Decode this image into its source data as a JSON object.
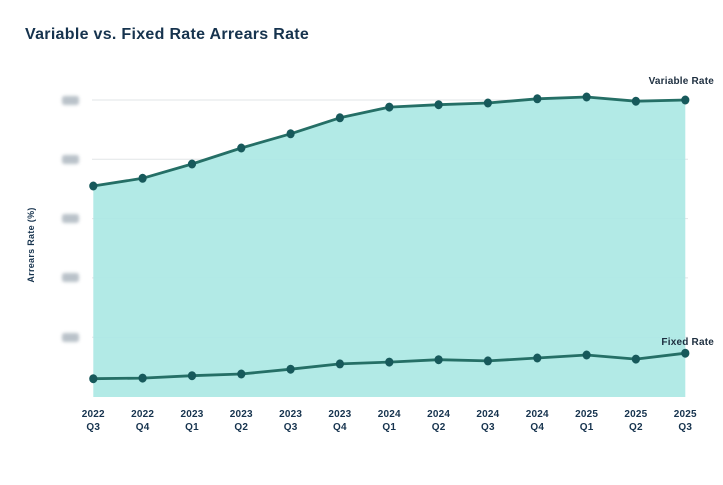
{
  "title": "Variable vs. Fixed Rate Arrears Rate",
  "chart_data": {
    "type": "area",
    "title": "Variable vs. Fixed Rate Arrears Rate",
    "xlabel": "",
    "ylabel": "Arrears Rate (%)",
    "categories": [
      {
        "year": "2022",
        "quarter": "Q3"
      },
      {
        "year": "2022",
        "quarter": "Q4"
      },
      {
        "year": "2023",
        "quarter": "Q1"
      },
      {
        "year": "2023",
        "quarter": "Q2"
      },
      {
        "year": "2023",
        "quarter": "Q3"
      },
      {
        "year": "2023",
        "quarter": "Q4"
      },
      {
        "year": "2024",
        "quarter": "Q1"
      },
      {
        "year": "2024",
        "quarter": "Q2"
      },
      {
        "year": "2024",
        "quarter": "Q3"
      },
      {
        "year": "2024",
        "quarter": "Q4"
      },
      {
        "year": "2025",
        "quarter": "Q1"
      },
      {
        "year": "2025",
        "quarter": "Q2"
      },
      {
        "year": "2025",
        "quarter": "Q3"
      }
    ],
    "series": [
      {
        "name": "Variable Rate",
        "values": [
          3.55,
          3.68,
          3.92,
          4.19,
          4.43,
          4.7,
          4.88,
          4.92,
          4.95,
          5.02,
          5.05,
          4.98,
          5.0
        ]
      },
      {
        "name": "Fixed Rate",
        "values": [
          0.3,
          0.31,
          0.35,
          0.38,
          0.46,
          0.55,
          0.58,
          0.62,
          0.6,
          0.65,
          0.7,
          0.63,
          0.73
        ]
      }
    ],
    "y_axis": {
      "tick_count": 5,
      "tick_values": [
        1,
        2,
        3,
        4,
        5
      ],
      "labels_visible": false,
      "note": "y-axis tick labels are blurred/redacted in the source image; series values are expressed in gridline units (0 = chart baseline, 1 unit per gridline step)"
    },
    "grid": "horizontal",
    "legend_position": "end-of-line labels (right side)"
  },
  "colors": {
    "line": "#256f66",
    "marker": "#17595b",
    "area_fill": "#ace8e4",
    "gridline": "#e2e5e7",
    "title_text": "#16334e",
    "series_label_text": "#1d2e3f",
    "redacted_tick": "#a9b3bc"
  }
}
